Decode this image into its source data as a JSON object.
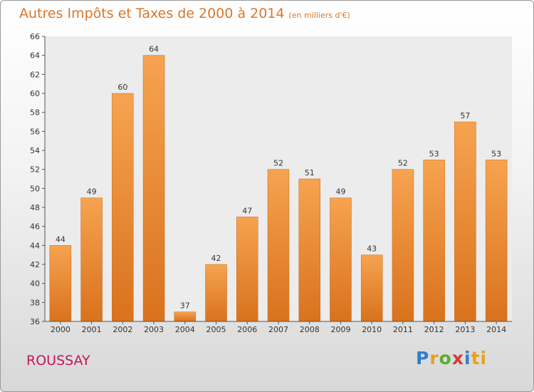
{
  "header": {
    "title": "Autres Impôts et Taxes de 2000 à 2014",
    "unit": "(en milliers d'€)"
  },
  "footer": {
    "place": "ROUSSAY",
    "logo_letters": [
      "P",
      "r",
      "o",
      "x",
      "i",
      "ti"
    ]
  },
  "colors": {
    "title": "#d9762a",
    "place": "#c2185b",
    "bar_light": "#f6a350",
    "bar_dark": "#d9721d"
  },
  "chart_data": {
    "type": "bar",
    "title": "Autres Impôts et Taxes de 2000 à 2014",
    "subtitle": "(en milliers d'€)",
    "categories": [
      "2000",
      "2001",
      "2002",
      "2003",
      "2004",
      "2005",
      "2006",
      "2007",
      "2008",
      "2009",
      "2010",
      "2011",
      "2012",
      "2013",
      "2014"
    ],
    "values": [
      44,
      49,
      60,
      64,
      37,
      42,
      47,
      52,
      51,
      49,
      43,
      52,
      53,
      57,
      53
    ],
    "ylim": [
      36,
      66
    ],
    "yticks": [
      36,
      38,
      40,
      42,
      44,
      46,
      48,
      50,
      52,
      54,
      56,
      58,
      60,
      62,
      64,
      66
    ],
    "grid": false,
    "data_labels": true
  }
}
